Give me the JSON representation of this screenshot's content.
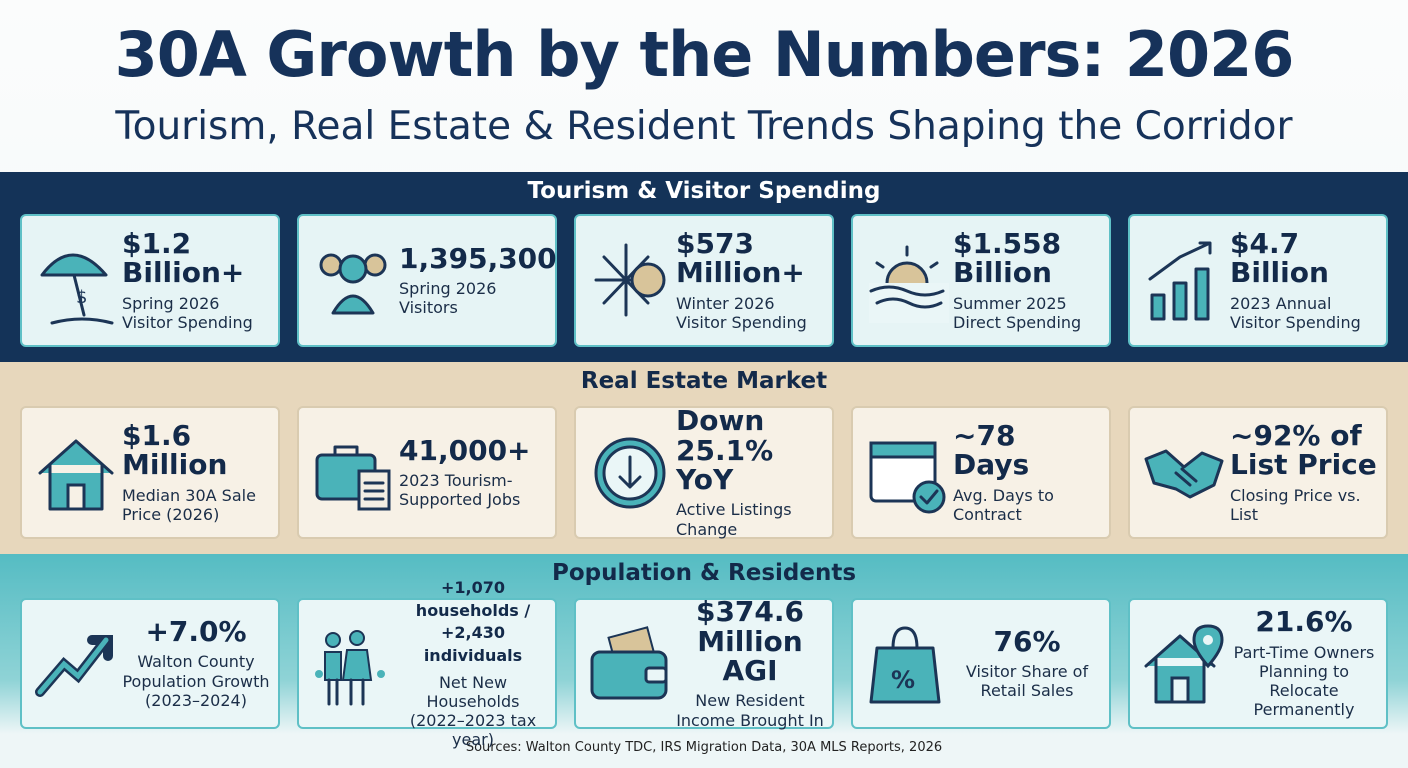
{
  "header": {
    "title": "30A Growth by the Numbers: 2026",
    "subtitle": "Tourism, Real Estate & Resident Trends Shaping the Corridor"
  },
  "sections": [
    {
      "title": "Tourism & Visitor Spending",
      "cards": [
        {
          "value": "$1.2 Billion+",
          "label": "Spring 2026 Visitor Spending"
        },
        {
          "value": "1,395,300",
          "label": "Spring 2026 Visitors"
        },
        {
          "value": "$573 Million+",
          "label": "Winter 2026 Visitor Spending"
        },
        {
          "value": "$1.558 Billion",
          "label": "Summer 2025 Direct Spending"
        },
        {
          "value": "$4.7 Billion",
          "label": "2023 Annual Visitor Spending"
        }
      ]
    },
    {
      "title": "Real Estate Market",
      "cards": [
        {
          "value": "$1.6 Million",
          "label": "Median 30A Sale Price (2026)"
        },
        {
          "value": "41,000+",
          "label": "2023 Tourism-Supported Jobs"
        },
        {
          "value": "Down 25.1% YoY",
          "label": "Active Listings Change"
        },
        {
          "value": "~78 Days",
          "label": "Avg. Days to Contract"
        },
        {
          "value": "~92% of List Price",
          "label": "Closing Price vs. List"
        }
      ]
    },
    {
      "title": "Population & Residents",
      "cards": [
        {
          "value": "+7.0%",
          "label": "Walton County Population Growth (2023–2024)"
        },
        {
          "value": "+1,070 households / +2,430 individuals",
          "label": "Net New Households (2022–2023 tax year)"
        },
        {
          "value": "$374.6 Million AGI",
          "label": "New Resident Income Brought In"
        },
        {
          "value": "76%",
          "label": "Visitor Share of Retail Sales"
        },
        {
          "value": "21.6%",
          "label": "Part-Time Owners Planning to Relocate Permanently"
        }
      ]
    }
  ],
  "footer": {
    "sources": "Sources: Walton County TDC, IRS Migration Data, 30A MLS Reports, 2026"
  }
}
